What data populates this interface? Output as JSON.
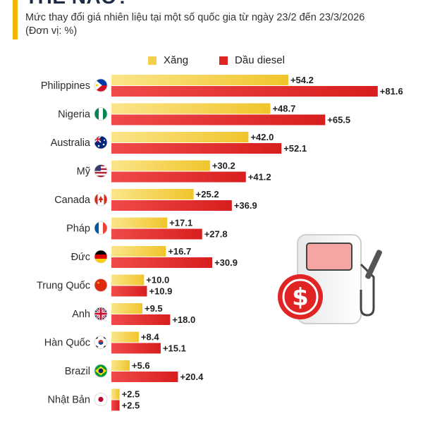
{
  "header": {
    "title": "THẾ NÀO?",
    "subtitle": "Mức thay đổi giá nhiên liệu tại một số quốc gia từ ngày 23/2 đến 23/3/2026",
    "unit": "(Đơn vị: %)"
  },
  "colors": {
    "gas": "#f5d04d",
    "diesel": "#e02424",
    "accent": "#f2b705"
  },
  "chart_data": {
    "type": "bar",
    "orientation": "horizontal",
    "categories": [
      "Philippines",
      "Nigeria",
      "Australia",
      "Mỹ",
      "Canada",
      "Pháp",
      "Đức",
      "Trung Quốc",
      "Anh",
      "Hàn Quốc",
      "Brazil",
      "Nhật Bản"
    ],
    "flags": [
      "philippines",
      "nigeria",
      "australia",
      "usa",
      "canada",
      "france",
      "germany",
      "china",
      "uk",
      "south-korea",
      "brazil",
      "japan"
    ],
    "series": [
      {
        "name": "Xăng",
        "values": [
          54.2,
          48.7,
          42.0,
          30.2,
          25.2,
          17.1,
          16.7,
          10.0,
          9.5,
          8.4,
          5.6,
          2.5
        ]
      },
      {
        "name": "Dầu diesel",
        "values": [
          81.6,
          65.5,
          52.1,
          41.2,
          36.9,
          27.8,
          30.9,
          10.9,
          18.0,
          15.1,
          20.4,
          2.5
        ]
      }
    ],
    "data_labels": [
      [
        "+54.2",
        "+48.7",
        "+42.0",
        "+30.2",
        "+25.2",
        "+17.1",
        "+16.7",
        "+10.0",
        "+9.5",
        "+8.4",
        "+5.6",
        "+2.5"
      ],
      [
        "+81.6",
        "+65.5",
        "+52.1",
        "+41.2",
        "+36.9",
        "+27.8",
        "+30.9",
        "+10.9",
        "+18.0",
        "+15.1",
        "+20.4",
        "+2.5"
      ]
    ],
    "xlim": [
      0,
      85
    ],
    "grid": false,
    "legend": "top"
  },
  "decoration": {
    "icon": "fuel-pump-dollar-icon"
  }
}
